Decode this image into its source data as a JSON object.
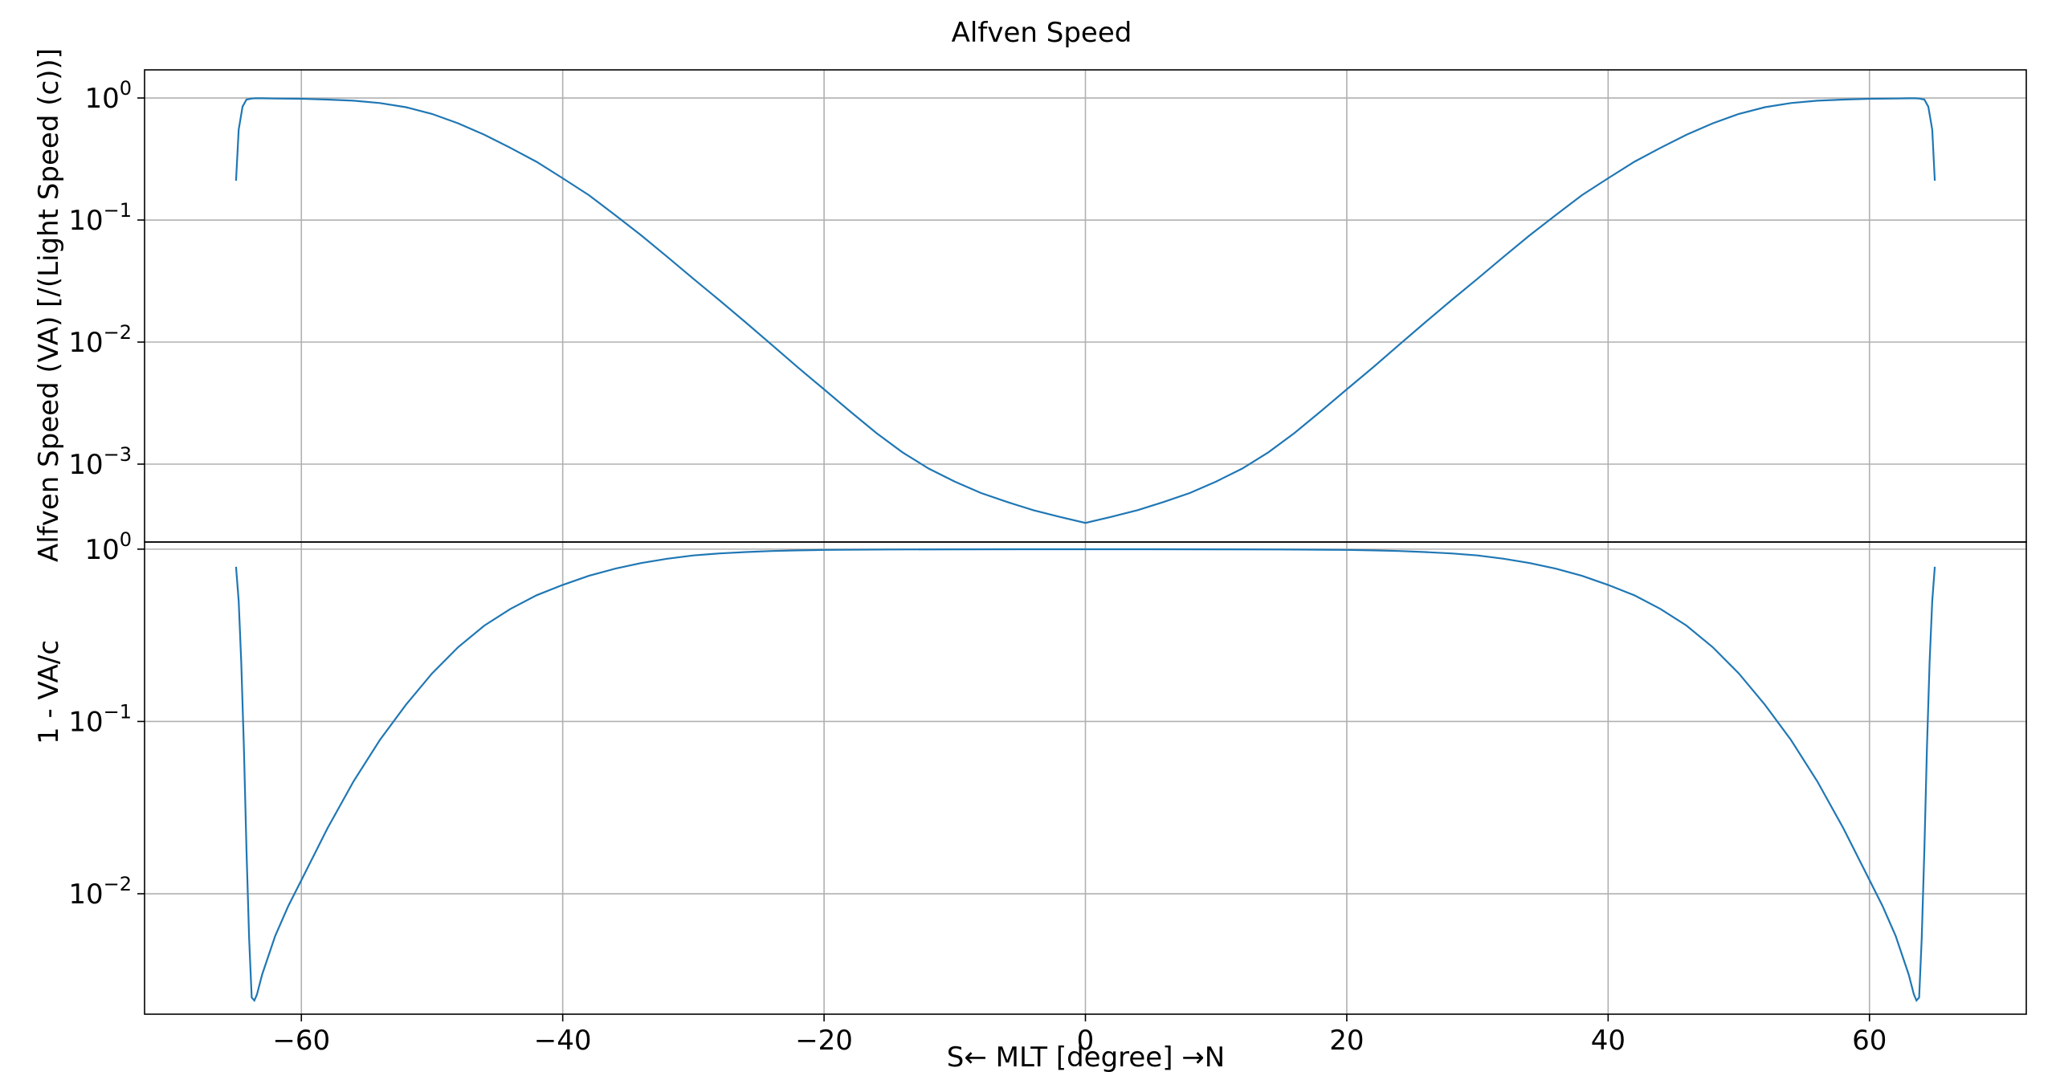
{
  "chart_data": {
    "type": "line",
    "title": "Alfven Speed",
    "xlabel": "S← MLT [degree] →N",
    "xlim": [
      -72,
      72
    ],
    "xticks": [
      {
        "value": -60,
        "label": "−60"
      },
      {
        "value": -40,
        "label": "−40"
      },
      {
        "value": -20,
        "label": "−20"
      },
      {
        "value": 0,
        "label": "0"
      },
      {
        "value": 20,
        "label": "20"
      },
      {
        "value": 40,
        "label": "40"
      },
      {
        "value": 60,
        "label": "60"
      }
    ],
    "grid": true,
    "line_color": "#1f77b4",
    "panels": [
      {
        "ylabel": "Alfven Speed (VA) [/(Light Speed (c))]",
        "yscale": "log",
        "ylim": [
          0.00023,
          1.7
        ],
        "yticks": [
          {
            "value": 1,
            "base": "10",
            "exp": "0"
          },
          {
            "value": 0.1,
            "base": "10",
            "exp": "−1"
          },
          {
            "value": 0.01,
            "base": "10",
            "exp": "−2"
          },
          {
            "value": 0.001,
            "base": "10",
            "exp": "−3"
          }
        ],
        "series": [
          {
            "x": [
              -65,
              -64.8,
              -64.5,
              -64.2,
              -63.8,
              -63.5,
              -63,
              -62,
              -60,
              -58,
              -56,
              -54,
              -52,
              -50,
              -48,
              -46,
              -44,
              -42,
              -40,
              -38,
              -36,
              -34,
              -32,
              -30,
              -28,
              -26,
              -24,
              -22,
              -20,
              -18,
              -16,
              -14,
              -12,
              -10,
              -8,
              -6,
              -4,
              -2,
              0,
              2,
              4,
              6,
              8,
              10,
              12,
              14,
              16,
              18,
              20,
              22,
              24,
              26,
              28,
              30,
              32,
              34,
              36,
              38,
              40,
              42,
              44,
              46,
              48,
              50,
              52,
              54,
              56,
              58,
              60,
              62,
              63,
              63.5,
              63.8,
              64.2,
              64.5,
              64.8,
              65
            ],
            "y": [
              0.21,
              0.55,
              0.85,
              0.97,
              0.99,
              0.995,
              0.995,
              0.99,
              0.985,
              0.97,
              0.95,
              0.91,
              0.84,
              0.74,
              0.62,
              0.5,
              0.39,
              0.3,
              0.22,
              0.16,
              0.11,
              0.075,
              0.05,
              0.033,
              0.022,
              0.0145,
              0.0095,
              0.0062,
              0.0041,
              0.0027,
              0.0018,
              0.00125,
              0.00092,
              0.00072,
              0.00058,
              0.00049,
              0.00042,
              0.00037,
              0.00033,
              0.00037,
              0.00042,
              0.00049,
              0.00058,
              0.00072,
              0.00092,
              0.00125,
              0.0018,
              0.0027,
              0.0041,
              0.0062,
              0.0095,
              0.0145,
              0.022,
              0.033,
              0.05,
              0.075,
              0.11,
              0.16,
              0.22,
              0.3,
              0.39,
              0.5,
              0.62,
              0.74,
              0.84,
              0.91,
              0.95,
              0.97,
              0.985,
              0.99,
              0.995,
              0.995,
              0.99,
              0.97,
              0.85,
              0.55,
              0.21
            ]
          }
        ]
      },
      {
        "ylabel": "1 - VA/c",
        "yscale": "log",
        "ylim": [
          0.002,
          1.1
        ],
        "yticks": [
          {
            "value": 1,
            "base": "10",
            "exp": "0"
          },
          {
            "value": 0.1,
            "base": "10",
            "exp": "−1"
          },
          {
            "value": 0.01,
            "base": "10",
            "exp": "−2"
          }
        ],
        "series": [
          {
            "x": [
              -65,
              -64.8,
              -64.6,
              -64.4,
              -64.2,
              -64,
              -63.8,
              -63.6,
              -63.4,
              -63,
              -62,
              -61,
              -60,
              -58,
              -56,
              -54,
              -52,
              -50,
              -48,
              -46,
              -44,
              -42,
              -40,
              -38,
              -36,
              -34,
              -32,
              -30,
              -28,
              -26,
              -24,
              -22,
              -20,
              -15,
              -10,
              -5,
              0,
              5,
              10,
              15,
              20,
              22,
              24,
              26,
              28,
              30,
              32,
              34,
              36,
              38,
              40,
              42,
              44,
              46,
              48,
              50,
              52,
              54,
              56,
              58,
              60,
              61,
              62,
              63,
              63.4,
              63.6,
              63.8,
              64,
              64.2,
              64.4,
              64.6,
              64.8,
              65
            ],
            "y": [
              0.79,
              0.5,
              0.22,
              0.07,
              0.018,
              0.0055,
              0.0025,
              0.0024,
              0.0026,
              0.0034,
              0.0057,
              0.0085,
              0.012,
              0.024,
              0.045,
              0.078,
              0.125,
              0.19,
              0.27,
              0.36,
              0.45,
              0.54,
              0.62,
              0.7,
              0.77,
              0.83,
              0.88,
              0.92,
              0.945,
              0.962,
              0.975,
              0.984,
              0.99,
              0.995,
              0.998,
              0.999,
              0.999,
              0.999,
              0.998,
              0.995,
              0.99,
              0.984,
              0.975,
              0.962,
              0.945,
              0.92,
              0.88,
              0.83,
              0.77,
              0.7,
              0.62,
              0.54,
              0.45,
              0.36,
              0.27,
              0.19,
              0.125,
              0.078,
              0.045,
              0.024,
              0.012,
              0.0085,
              0.0057,
              0.0034,
              0.0026,
              0.0024,
              0.0025,
              0.0055,
              0.018,
              0.07,
              0.22,
              0.5,
              0.79
            ]
          }
        ]
      }
    ]
  }
}
